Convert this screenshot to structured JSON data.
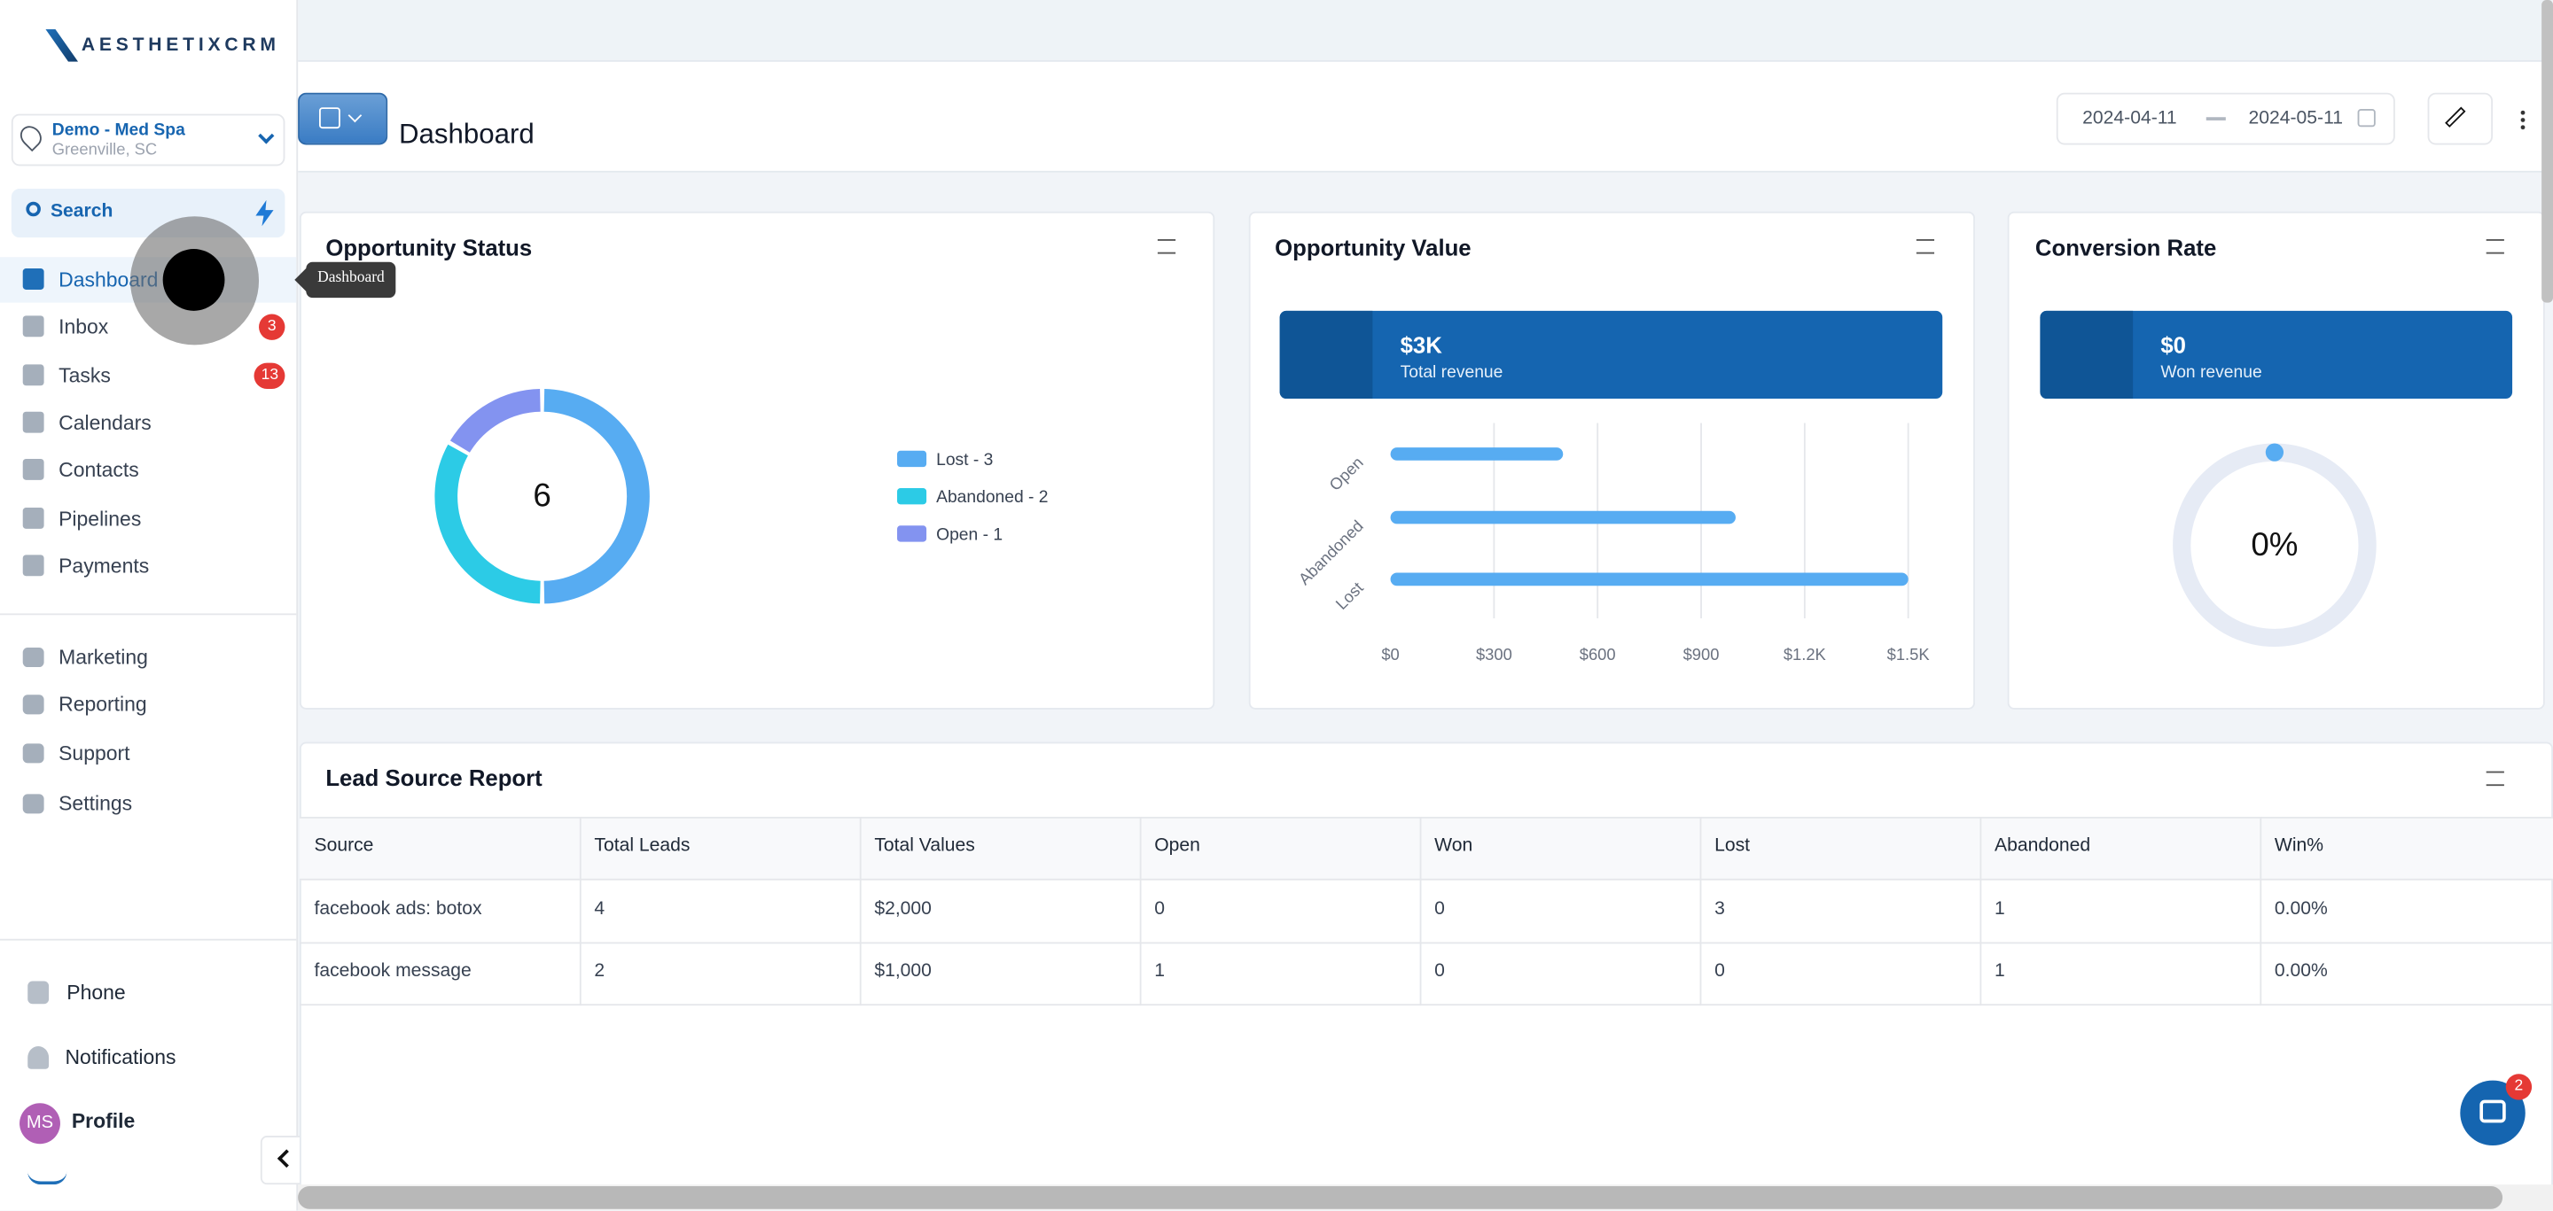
{
  "brand": "AESTHETIXCRM",
  "location": {
    "name": "Demo - Med Spa",
    "city": "Greenville, SC"
  },
  "search": "Search",
  "nav": [
    {
      "label": "Dashboard"
    },
    {
      "label": "Inbox",
      "badge": 3
    },
    {
      "label": "Tasks",
      "badge": 13
    },
    {
      "label": "Calendars"
    },
    {
      "label": "Contacts"
    },
    {
      "label": "Pipelines"
    },
    {
      "label": "Payments"
    }
  ],
  "nav2": [
    {
      "label": "Marketing"
    },
    {
      "label": "Reporting"
    },
    {
      "label": "Support"
    },
    {
      "label": "Settings"
    }
  ],
  "bottom_nav": [
    {
      "label": "Phone"
    },
    {
      "label": "Notifications"
    },
    {
      "label": "Profile"
    }
  ],
  "avatar": "MS",
  "tooltip": "Dashboard",
  "page_title": "Dashboard",
  "date_range": {
    "start": "2024-04-11",
    "end": "2024-05-11"
  },
  "opportunity_status": {
    "type": "donut",
    "title": "Opportunity Status",
    "total": 6,
    "series": [
      {
        "name": "Lost",
        "label": "Lost - 3",
        "value": 3,
        "color": "#57acf2"
      },
      {
        "name": "Abandoned",
        "label": "Abandoned - 2",
        "value": 2,
        "color": "#2ccbe6"
      },
      {
        "name": "Open",
        "label": "Open - 1",
        "value": 1,
        "color": "#8393f0"
      }
    ]
  },
  "opportunity_value": {
    "type": "bar",
    "title": "Opportunity Value",
    "kpi": "$3K",
    "kpi_label": "Total revenue",
    "categories": [
      "Open",
      "Abandoned",
      "Lost"
    ],
    "values": [
      500,
      1000,
      1500
    ],
    "color": "#57acf2",
    "xlim": [
      0,
      1500
    ],
    "xticks": [
      {
        "value": 0,
        "label": "$0"
      },
      {
        "value": 300,
        "label": "$300"
      },
      {
        "value": 600,
        "label": "$600"
      },
      {
        "value": 900,
        "label": "$900"
      },
      {
        "value": 1200,
        "label": "$1.2K"
      },
      {
        "value": 1500,
        "label": "$1.5K"
      }
    ],
    "grid": true
  },
  "conversion_rate": {
    "type": "gauge",
    "title": "Conversion Rate",
    "kpi": "$0",
    "kpi_label": "Won revenue",
    "value": 0,
    "value_label": "0%",
    "lim": [
      0,
      100
    ],
    "color": "#57acf2"
  },
  "lead_source": {
    "title": "Lead Source Report",
    "columns": [
      "Source",
      "Total Leads",
      "Total Values",
      "Open",
      "Won",
      "Lost",
      "Abandoned",
      "Win%"
    ],
    "rows": [
      [
        "facebook ads: botox",
        4,
        "$2,000",
        0,
        0,
        3,
        1,
        "0.00%"
      ],
      [
        "facebook message",
        2,
        "$1,000",
        1,
        0,
        0,
        1,
        "0.00%"
      ]
    ]
  },
  "chat_badge": 2
}
